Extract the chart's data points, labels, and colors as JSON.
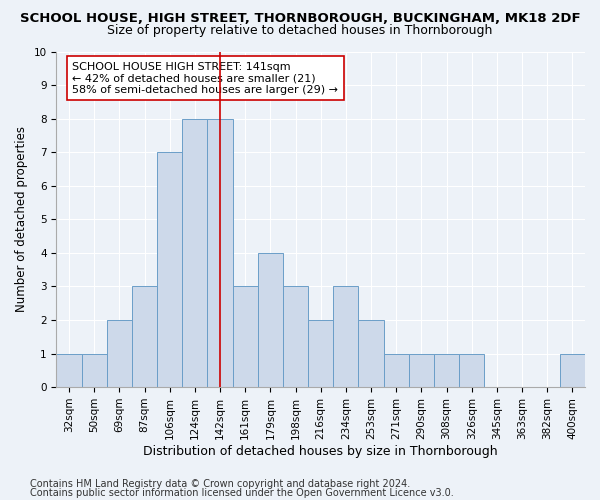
{
  "title": "SCHOOL HOUSE, HIGH STREET, THORNBOROUGH, BUCKINGHAM, MK18 2DF",
  "subtitle": "Size of property relative to detached houses in Thornborough",
  "xlabel": "Distribution of detached houses by size in Thornborough",
  "ylabel": "Number of detached properties",
  "categories": [
    "32sqm",
    "50sqm",
    "69sqm",
    "87sqm",
    "106sqm",
    "124sqm",
    "142sqm",
    "161sqm",
    "179sqm",
    "198sqm",
    "216sqm",
    "234sqm",
    "253sqm",
    "271sqm",
    "290sqm",
    "308sqm",
    "326sqm",
    "345sqm",
    "363sqm",
    "382sqm",
    "400sqm"
  ],
  "values": [
    1,
    1,
    2,
    3,
    7,
    8,
    8,
    3,
    4,
    3,
    2,
    3,
    2,
    1,
    1,
    1,
    1,
    0,
    0,
    0,
    1
  ],
  "bar_color": "#cdd9ea",
  "bar_edge_color": "#6b9ec8",
  "vline_index": 6,
  "vline_color": "#cc0000",
  "ylim": [
    0,
    10
  ],
  "yticks": [
    0,
    1,
    2,
    3,
    4,
    5,
    6,
    7,
    8,
    9,
    10
  ],
  "annotation_title": "SCHOOL HOUSE HIGH STREET: 141sqm",
  "annotation_line1": "← 42% of detached houses are smaller (21)",
  "annotation_line2": "58% of semi-detached houses are larger (29) →",
  "footnote1": "Contains HM Land Registry data © Crown copyright and database right 2024.",
  "footnote2": "Contains public sector information licensed under the Open Government Licence v3.0.",
  "bg_color": "#edf2f8",
  "plot_bg_color": "#edf2f8",
  "title_fontsize": 9.5,
  "subtitle_fontsize": 9,
  "xlabel_fontsize": 9,
  "ylabel_fontsize": 8.5,
  "tick_fontsize": 7.5,
  "annotation_fontsize": 8,
  "footnote_fontsize": 7
}
